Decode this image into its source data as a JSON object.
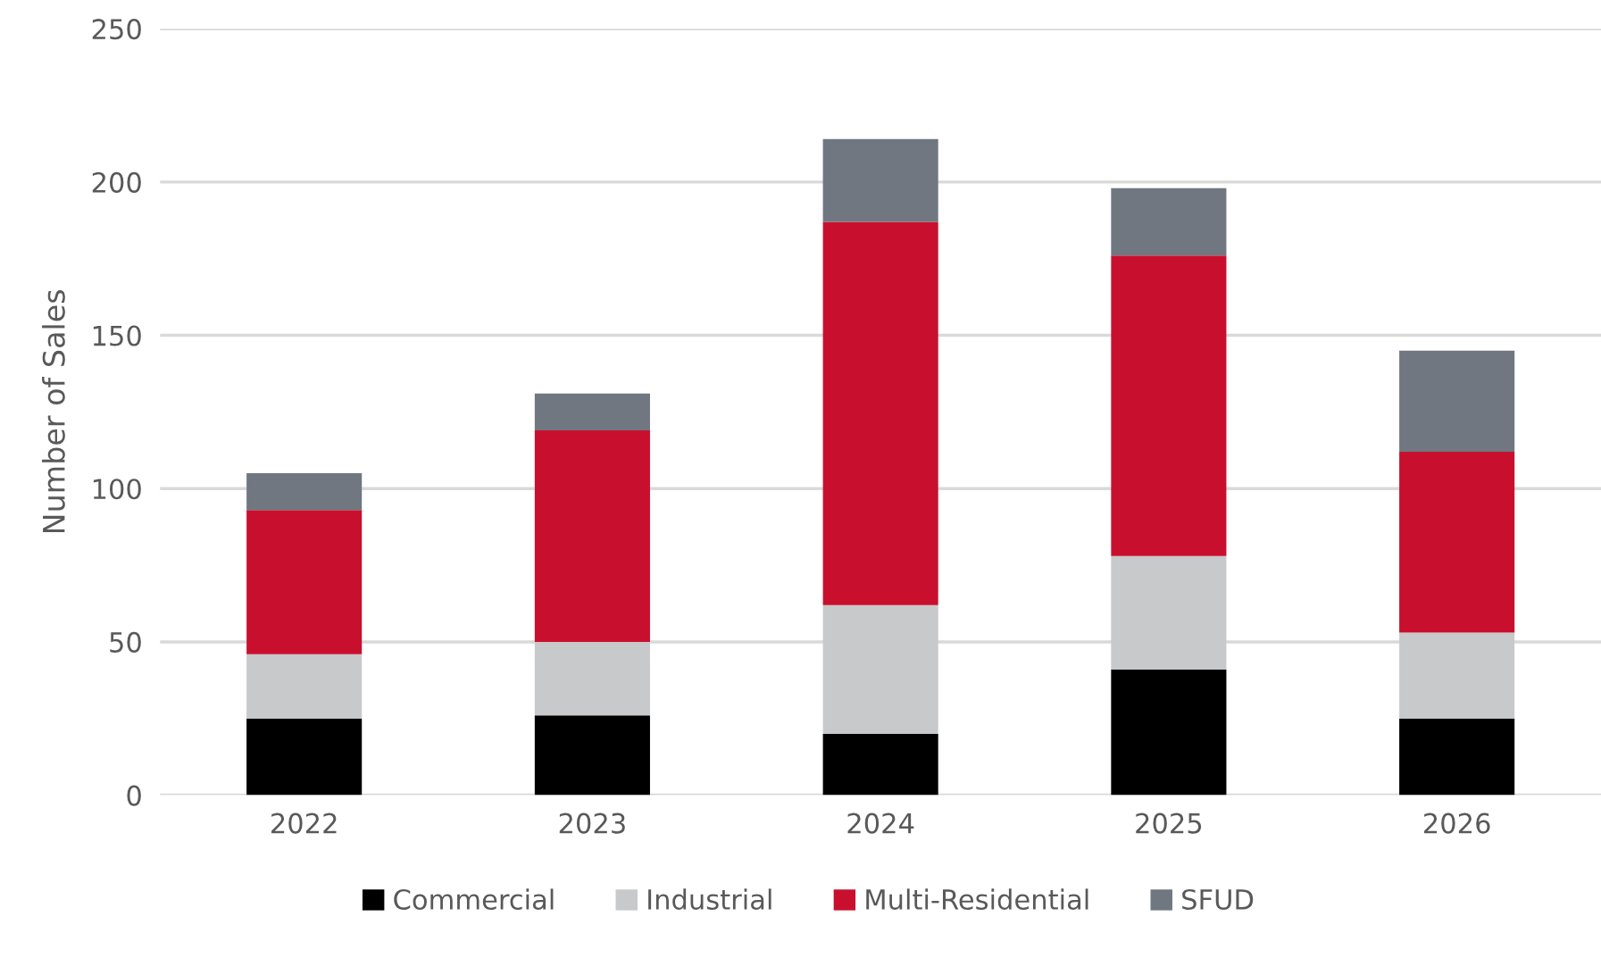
{
  "chart_data": {
    "type": "bar",
    "stacked": true,
    "ylabel": "Number of Sales",
    "categories": [
      "2022",
      "2023",
      "2024",
      "2025",
      "2026"
    ],
    "series": [
      {
        "name": "Commercial",
        "color": "#000000",
        "values": [
          25,
          26,
          20,
          41,
          25
        ]
      },
      {
        "name": "Industrial",
        "color": "#c8c9cb",
        "values": [
          21,
          24,
          42,
          37,
          28
        ]
      },
      {
        "name": "Multi-Residential",
        "color": "#c8102e",
        "values": [
          47,
          69,
          125,
          98,
          59
        ]
      },
      {
        "name": "SFUD",
        "color": "#707780",
        "values": [
          12,
          12,
          27,
          22,
          33
        ]
      }
    ],
    "ylim": [
      0,
      250
    ],
    "yticks": [
      0,
      50,
      100,
      150,
      200,
      250
    ],
    "grid": "y",
    "legend": "bottom"
  }
}
